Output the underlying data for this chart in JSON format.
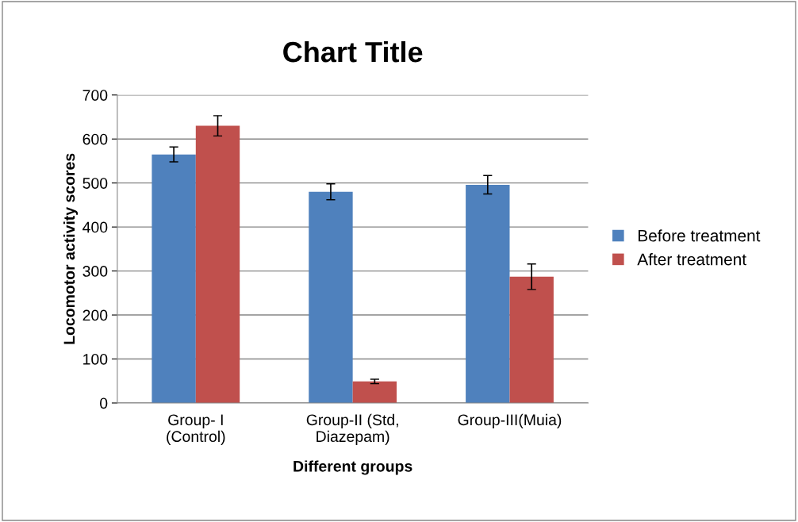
{
  "chart_data": {
    "type": "bar",
    "title": "Chart Title",
    "xlabel": "Different groups",
    "ylabel": "Locomotor activity scores",
    "categories": [
      "Group- I\n(Control)",
      "Group-II (Std,\nDiazepam)",
      "Group-III(Muia)"
    ],
    "series": [
      {
        "name": "Before treatment",
        "color": "#4f81bd",
        "values": [
          565,
          480,
          496
        ],
        "errors": [
          17,
          18,
          21
        ]
      },
      {
        "name": "After treatment",
        "color": "#c0504d",
        "values": [
          630,
          49,
          287
        ],
        "errors": [
          23,
          5,
          29
        ]
      }
    ],
    "ylim": [
      0,
      700
    ],
    "yticks": [
      0,
      100,
      200,
      300,
      400,
      500,
      600,
      700
    ],
    "grid": "y",
    "legend": "right"
  }
}
